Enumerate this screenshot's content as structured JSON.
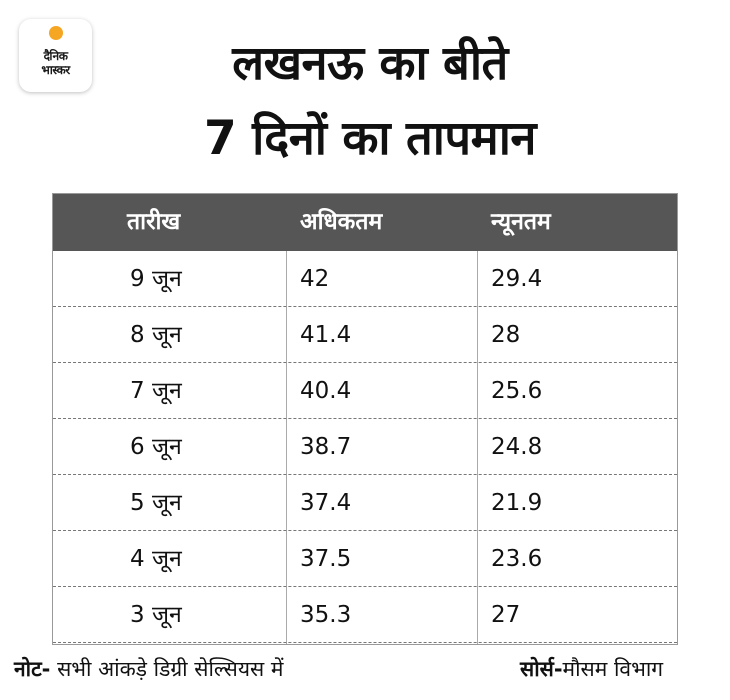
{
  "logo": {
    "line1": "दैनिक",
    "line2": "भास्कर",
    "sun_color": "#f5a623"
  },
  "title": {
    "line1": "लखनऊ का बीते",
    "line2": "7 दिनों का तापमान"
  },
  "colors": {
    "header_bg": "#565656",
    "header_text": "#ffffff"
  },
  "chart_data": {
    "type": "table",
    "title": "लखनऊ का बीते 7 दिनों का तापमान",
    "columns": [
      "तारीख",
      "अधिकतम",
      "न्यूनतम"
    ],
    "rows": [
      [
        "9 जून",
        "42",
        "29.4"
      ],
      [
        "8 जून",
        "41.4",
        "28"
      ],
      [
        "7 जून",
        "40.4",
        "25.6"
      ],
      [
        "6 जून",
        "38.7",
        "24.8"
      ],
      [
        "5 जून",
        "37.4",
        "21.9"
      ],
      [
        "4 जून",
        "37.5",
        "23.6"
      ],
      [
        "3 जून",
        "35.3",
        "27"
      ]
    ]
  },
  "footer": {
    "note_label": "नोट-",
    "note_text": " सभी आंकड़े डिग्री सेल्सियस में",
    "source_label": "सोर्स-",
    "source_text": "मौसम विभाग"
  }
}
